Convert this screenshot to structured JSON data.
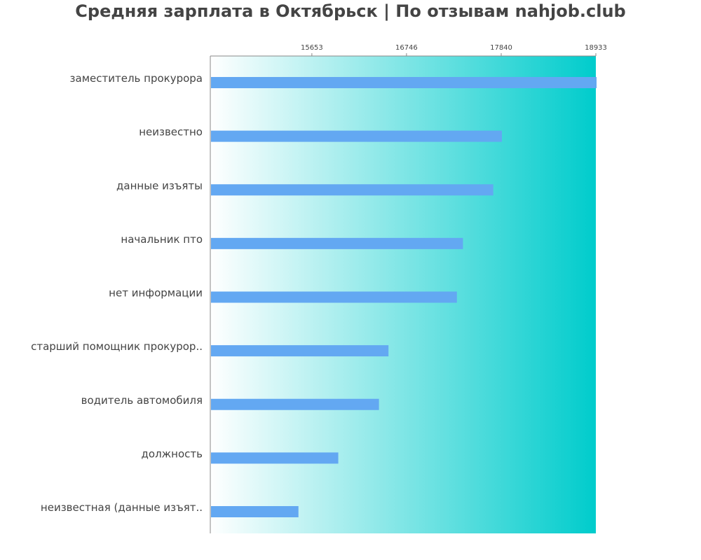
{
  "chart_data": {
    "type": "bar",
    "orientation": "horizontal",
    "title": "Средняя зарплата в Октябрьск | По отзывам nahjob.club",
    "xlabel": "",
    "ylabel": "",
    "xlim": [
      14480,
      18933
    ],
    "xticks": [
      15653,
      16746,
      17840,
      18933
    ],
    "xtick_position": "top",
    "grid": false,
    "categories": [
      "заместитель прокурора",
      "неизвестно",
      "данные изъяты",
      "начальник пто",
      "нет информации",
      "старший помощник прокурор..",
      "водитель автомобиля",
      "должность",
      "неизвестная (данные изъят.."
    ],
    "values": [
      18933,
      17840,
      17740,
      17390,
      17320,
      16530,
      16420,
      15950,
      15490
    ],
    "colors": {
      "bar": "#63a8f2",
      "gradient_start": "#ffffff",
      "gradient_end": "#00cccc",
      "axis": "#888888",
      "text": "#444444"
    }
  }
}
